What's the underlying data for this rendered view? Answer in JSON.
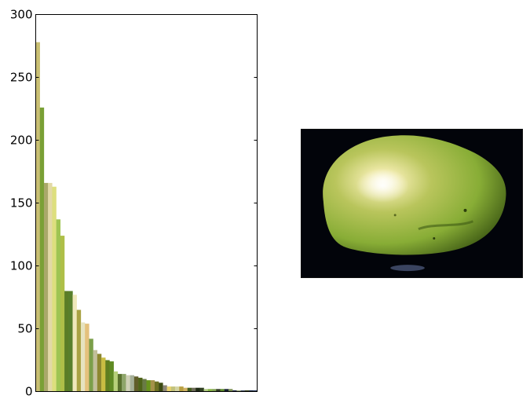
{
  "chart_data": {
    "type": "bar",
    "title": "",
    "xlabel": "",
    "ylabel": "",
    "ylim": [
      0,
      300
    ],
    "yticks": [
      0,
      50,
      100,
      150,
      200,
      250,
      300
    ],
    "grid": false,
    "legend": "none",
    "series": [
      {
        "values": [
          278,
          226,
          166,
          166,
          163,
          137,
          124,
          80,
          80,
          77,
          65,
          55,
          54,
          42,
          33,
          30,
          27,
          25,
          24,
          16,
          14,
          14,
          13,
          13,
          12,
          11,
          10,
          9,
          9,
          8,
          7,
          5,
          4,
          4,
          4,
          4,
          3,
          3,
          3,
          3,
          3,
          2,
          2,
          2,
          2,
          2,
          2,
          2,
          1,
          1,
          1,
          1,
          1,
          1
        ],
        "colors": [
          "#c9bf73",
          "#79a035",
          "#a9a86a",
          "#e2d9a6",
          "#dddf7e",
          "#9fc453",
          "#aebf48",
          "#5b7d26",
          "#587f2c",
          "#efe8bb",
          "#a9a243",
          "#e6e3c0",
          "#e4c17c",
          "#7b9f4a",
          "#c2bf9b",
          "#8d8730",
          "#c9bc42",
          "#5f7d1f",
          "#5f8a23",
          "#b7d07a",
          "#58702d",
          "#8ea56a",
          "#cfd0b7",
          "#a6b09a",
          "#605d2a",
          "#4e6319",
          "#697a45",
          "#68941c",
          "#a49249",
          "#6b7022",
          "#3c4a12",
          "#8b8576",
          "#e9d36d",
          "#c3c27b",
          "#d4d4a3",
          "#b8a042",
          "#d1b366",
          "#445d1c",
          "#6e6b58",
          "#1f2a14",
          "#304023",
          "#b1cc83",
          "#86b343",
          "#7fa152",
          "#333b24",
          "#5c8a2b",
          "#161e32",
          "#7a8e51",
          "#252e48",
          "#9eab7c",
          "#47536a",
          "#39421d",
          "#1c2c4a",
          "#2d3d5f"
        ]
      }
    ]
  },
  "photo": {
    "subject": "pear-photo",
    "colors": {
      "background": "#02040a",
      "body": "#8fb43c",
      "highlight": "#fffbe6",
      "shadow": "#3e5a14"
    }
  }
}
